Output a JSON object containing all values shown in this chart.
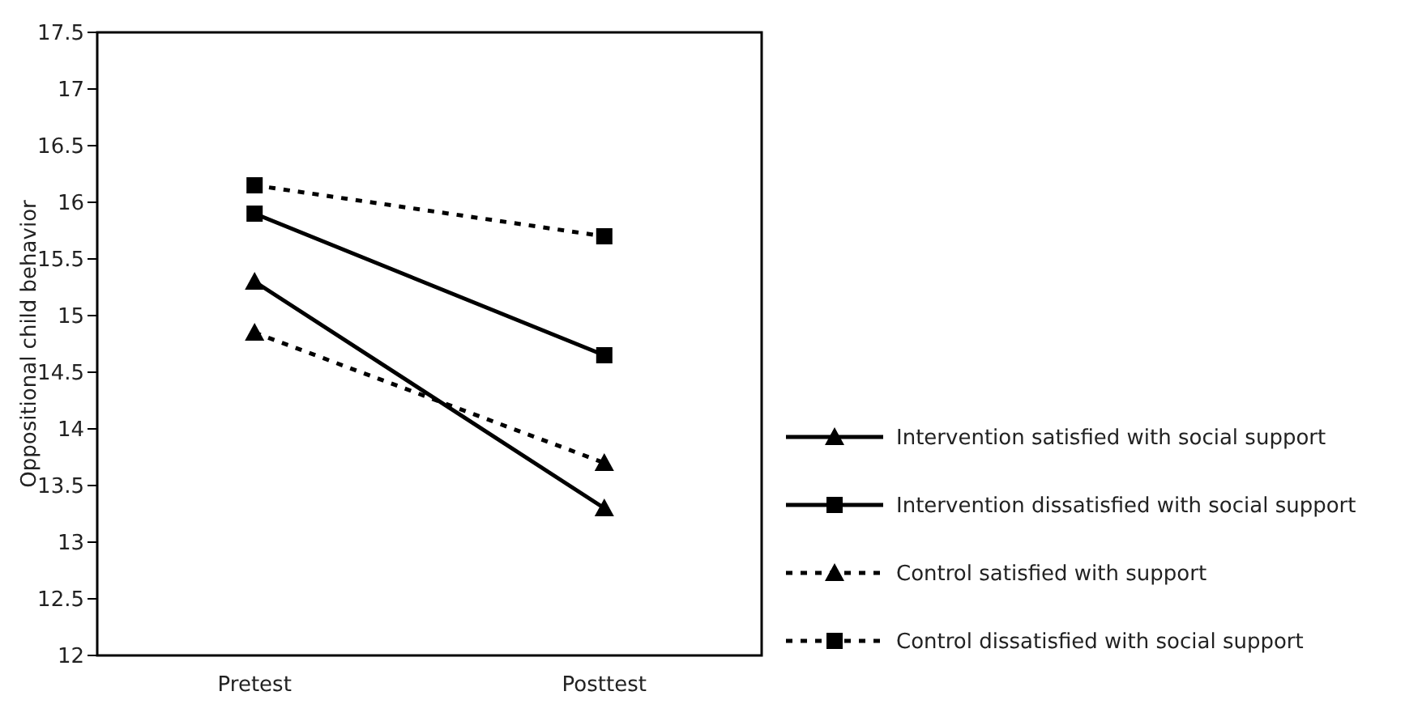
{
  "chart_data": {
    "type": "line",
    "ylabel": "Oppositional child behavior",
    "categories": [
      "Pretest",
      "Posttest"
    ],
    "ylim": [
      12,
      17.5
    ],
    "yticks": [
      12,
      12.5,
      13,
      13.5,
      14,
      14.5,
      15,
      15.5,
      16,
      16.5,
      17,
      17.5
    ],
    "grid": false,
    "legend": "right",
    "series": [
      {
        "name": "Intervention satisfied with social support",
        "color": "#000000",
        "values": [
          15.3,
          13.3
        ],
        "marker": "triangle",
        "line_style": "solid"
      },
      {
        "name": "Intervention dissatisfied with social support",
        "color": "#000000",
        "values": [
          15.9,
          14.65
        ],
        "marker": "square",
        "line_style": "solid"
      },
      {
        "name": "Control satisfied with support",
        "color": "#000000",
        "values": [
          14.85,
          13.7
        ],
        "marker": "triangle",
        "line_style": "dotted"
      },
      {
        "name": "Control dissatisfied with social support",
        "color": "#000000",
        "values": [
          16.15,
          15.7
        ],
        "marker": "square",
        "line_style": "dotted"
      }
    ]
  }
}
